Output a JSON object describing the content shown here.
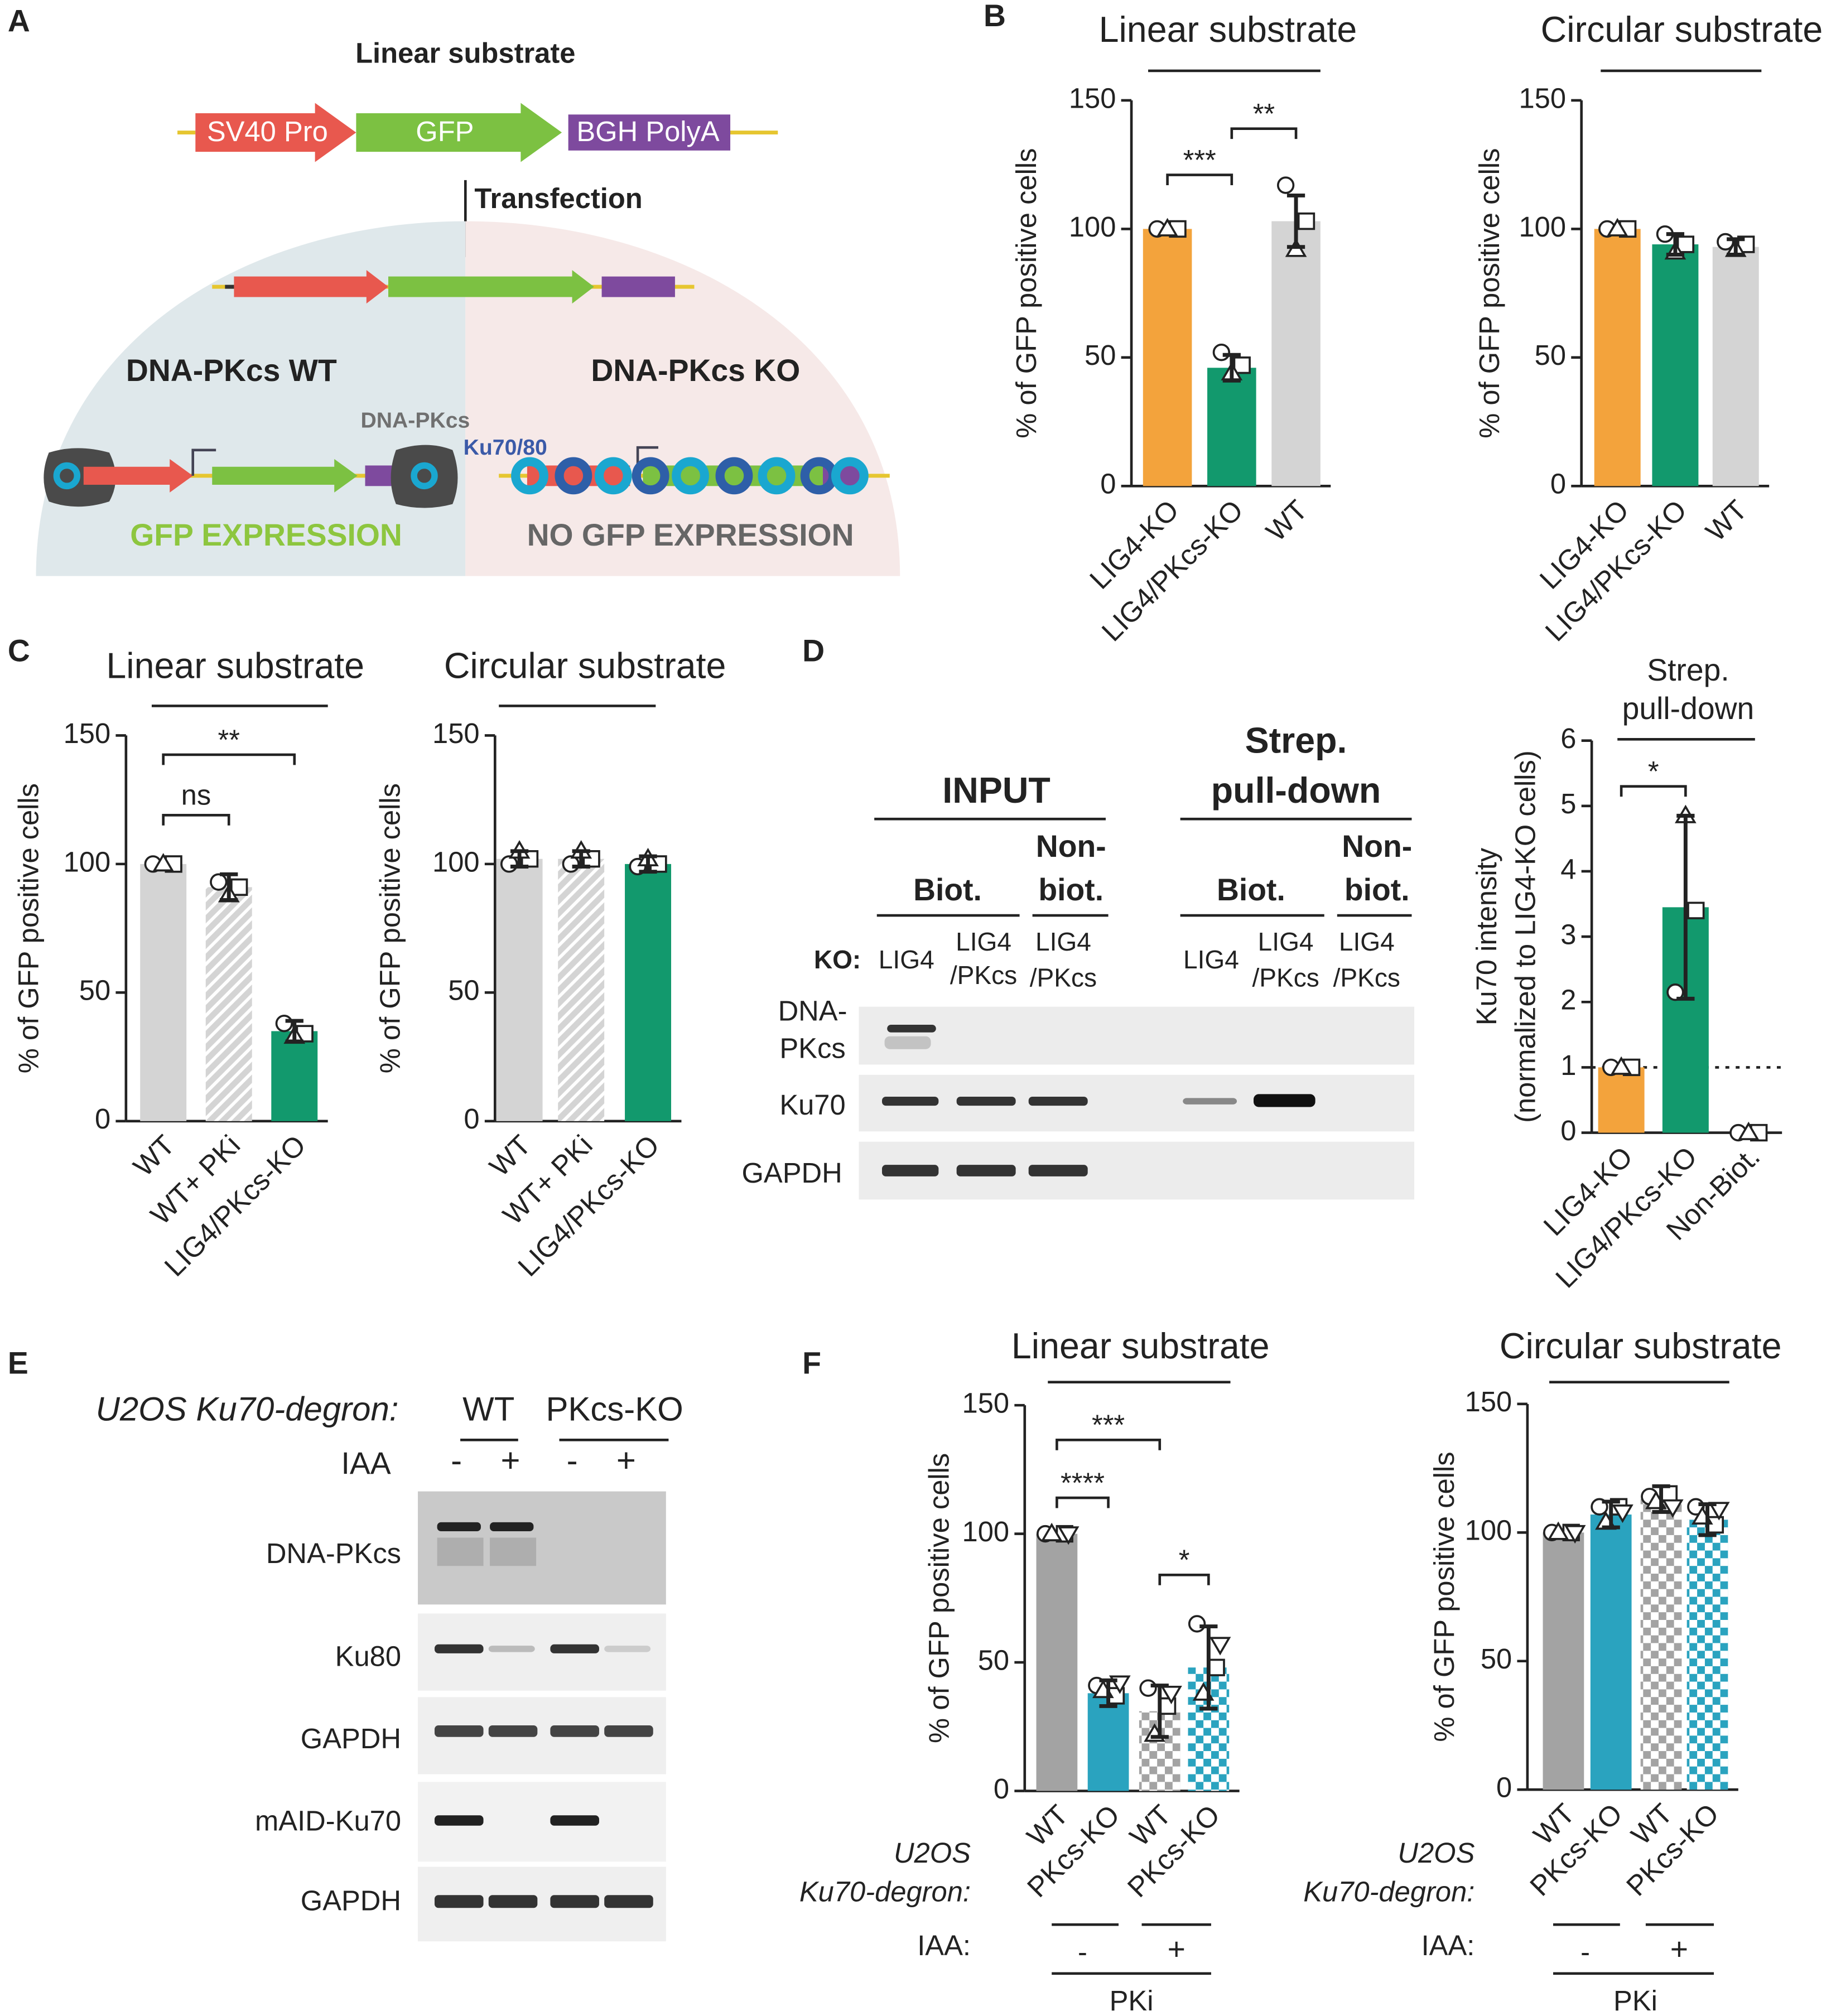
{
  "panel_labels": [
    "A",
    "B",
    "C",
    "D",
    "E",
    "F"
  ],
  "diagram": {
    "title": "Linear substrate",
    "parts": [
      "SV40 Pro",
      "GFP",
      "BGH PolyA"
    ],
    "step": "Transfection",
    "left": "DNA-PKcs WT",
    "right": "DNA-PKcs KO",
    "protein1": "DNA-PKcs",
    "protein2": "Ku70/80",
    "left_result": "GFP EXPRESSION",
    "right_result": "NO GFP EXPRESSION"
  },
  "blot_d": {
    "input": "INPUT",
    "pulldown": [
      "Strep.",
      "pull-down"
    ],
    "biot": "Biot.",
    "nonbiot": [
      "Non-",
      "biot."
    ],
    "ko": "KO:",
    "lanes": [
      [
        "LIG4"
      ],
      [
        "LIG4",
        "/PKcs"
      ],
      [
        "LIG4",
        "/PKcs"
      ],
      [
        "LIG4"
      ],
      [
        "LIG4",
        "/PKcs"
      ],
      [
        "LIG4",
        "/PKcs"
      ]
    ],
    "rows": [
      [
        "DNA-",
        "PKcs"
      ],
      [
        "Ku70"
      ],
      [
        "GAPDH"
      ]
    ]
  },
  "blot_e": {
    "cell": "U2OS Ku70-degron:",
    "groups": [
      "WT",
      "PKcs-KO"
    ],
    "iaa": "IAA",
    "signs": [
      "-",
      "+",
      "-",
      "+"
    ],
    "rows": [
      "DNA-PKcs",
      "Ku80",
      "GAPDH",
      "mAID-Ku70",
      "GAPDH"
    ]
  },
  "chart_data": [
    {
      "type": "bar",
      "title": "Linear substrate",
      "ylabel": "% of GFP positive cells",
      "categories": [
        "LIG4-KO",
        "LIG4/PKcs-KO",
        "WT"
      ],
      "values": [
        100,
        46,
        103
      ],
      "errors": [
        0,
        5,
        10
      ],
      "points": [
        [
          100,
          100,
          100
        ],
        [
          52,
          47,
          44
        ],
        [
          117,
          103,
          92
        ]
      ],
      "colors": [
        "#f3a33c",
        "#12996d",
        "#d4d4d4"
      ],
      "patterns": [
        "solid",
        "solid",
        "solid"
      ],
      "annotations": [
        "***",
        "**"
      ],
      "ylim": [
        0,
        150
      ],
      "yticks": [
        0,
        50,
        100,
        150
      ]
    },
    {
      "type": "bar",
      "title": "Circular substrate",
      "ylabel": "% of GFP positive cells",
      "categories": [
        "LIG4-KO",
        "LIG4/PKcs-KO",
        "WT"
      ],
      "values": [
        100,
        94,
        93
      ],
      "errors": [
        0,
        4,
        3
      ],
      "points": [
        [
          100,
          100,
          100
        ],
        [
          98,
          94,
          91
        ],
        [
          95,
          94,
          92
        ]
      ],
      "colors": [
        "#f3a33c",
        "#12996d",
        "#d4d4d4"
      ],
      "patterns": [
        "solid",
        "solid",
        "solid"
      ],
      "annotations": [],
      "ylim": [
        0,
        150
      ],
      "yticks": [
        0,
        50,
        100,
        150
      ]
    },
    {
      "type": "bar",
      "title": "Linear substrate",
      "ylabel": "% of GFP positive cells",
      "categories": [
        "WT",
        "WT+ PKi",
        "LIG4/PKcs-KO"
      ],
      "values": [
        100,
        91,
        35
      ],
      "errors": [
        0,
        5,
        4
      ],
      "points": [
        [
          100,
          100,
          100
        ],
        [
          93,
          91,
          88
        ],
        [
          38,
          34,
          33
        ]
      ],
      "colors": [
        "#d4d4d4",
        "#d4d4d4",
        "#12996d"
      ],
      "patterns": [
        "solid",
        "hatch",
        "solid"
      ],
      "annotations": [
        "ns",
        "**"
      ],
      "ylim": [
        0,
        150
      ],
      "yticks": [
        0,
        50,
        100,
        150
      ]
    },
    {
      "type": "bar",
      "title": "Circular substrate",
      "ylabel": "% of GFP positive cells",
      "categories": [
        "WT",
        "WT+ PKi",
        "LIG4/PKcs-KO"
      ],
      "values": [
        102,
        102,
        100
      ],
      "errors": [
        3,
        3,
        3
      ],
      "points": [
        [
          100,
          102,
          105
        ],
        [
          100,
          102,
          105
        ],
        [
          99,
          100,
          102
        ]
      ],
      "colors": [
        "#d4d4d4",
        "#d4d4d4",
        "#12996d"
      ],
      "patterns": [
        "solid",
        "hatch",
        "solid"
      ],
      "annotations": [],
      "ylim": [
        0,
        150
      ],
      "yticks": [
        0,
        50,
        100,
        150
      ]
    },
    {
      "type": "bar",
      "title": [
        "Strep.",
        "pull-down"
      ],
      "ylabel": [
        "Ku70 intensity",
        "(normalized to LIG4-KO cells)"
      ],
      "categories": [
        "LIG4-KO",
        "LIG4/PKcs-KO",
        "Non-Biot."
      ],
      "values": [
        1,
        3.45,
        0
      ],
      "errors": [
        0,
        1.4,
        0
      ],
      "points": [
        [
          1,
          1,
          1
        ],
        [
          2.15,
          3.4,
          4.85
        ],
        [
          0,
          0,
          0
        ]
      ],
      "colors": [
        "#f3a33c",
        "#12996d",
        "#d4d4d4"
      ],
      "patterns": [
        "solid",
        "solid",
        "solid"
      ],
      "annotations": [
        "*"
      ],
      "ref_line": 1,
      "ylim": [
        0,
        6
      ],
      "yticks": [
        0,
        1,
        2,
        3,
        4,
        5,
        6
      ]
    },
    {
      "type": "bar",
      "title": "Linear substrate",
      "ylabel": "% of GFP positive cells",
      "categories": [
        "WT",
        "PKcs-KO",
        "WT",
        "PKcs-KO"
      ],
      "values": [
        100,
        38,
        31,
        48
      ],
      "errors": [
        0,
        5,
        10,
        16
      ],
      "points": [
        [
          100,
          100,
          100,
          100
        ],
        [
          41,
          37,
          39,
          42
        ],
        [
          40,
          33,
          22,
          38
        ],
        [
          65,
          48,
          38,
          57
        ]
      ],
      "colors": [
        "#a3a3a3",
        "#2aa3bf",
        "#a3a3a3",
        "#2aa3bf"
      ],
      "patterns": [
        "solid",
        "solid",
        "checker",
        "checker"
      ],
      "annotations": [
        "****",
        "***",
        "*"
      ],
      "group_label": [
        "U2OS",
        "Ku70-degron:"
      ],
      "iaa_label": "IAA:",
      "iaa": [
        "-",
        "+"
      ],
      "treatment": "PKi",
      "ylim": [
        0,
        150
      ],
      "yticks": [
        0,
        50,
        100,
        150
      ]
    },
    {
      "type": "bar",
      "title": "Circular substrate",
      "ylabel": "% of GFP positive cells",
      "categories": [
        "WT",
        "PKcs-KO",
        "WT",
        "PKcs-KO"
      ],
      "values": [
        100,
        107,
        113,
        105
      ],
      "errors": [
        0,
        5,
        5,
        6
      ],
      "points": [
        [
          100,
          100,
          100,
          100
        ],
        [
          110,
          110,
          104,
          108
        ],
        [
          114,
          115,
          112,
          110
        ],
        [
          110,
          103,
          106,
          109
        ]
      ],
      "colors": [
        "#a3a3a3",
        "#2aa3bf",
        "#a3a3a3",
        "#2aa3bf"
      ],
      "patterns": [
        "solid",
        "solid",
        "checker",
        "checker"
      ],
      "annotations": [],
      "group_label": [
        "U2OS",
        "Ku70-degron:"
      ],
      "iaa_label": "IAA:",
      "iaa": [
        "-",
        "+"
      ],
      "treatment": "PKi",
      "ylim": [
        0,
        150
      ],
      "yticks": [
        0,
        50,
        100,
        150
      ]
    }
  ]
}
